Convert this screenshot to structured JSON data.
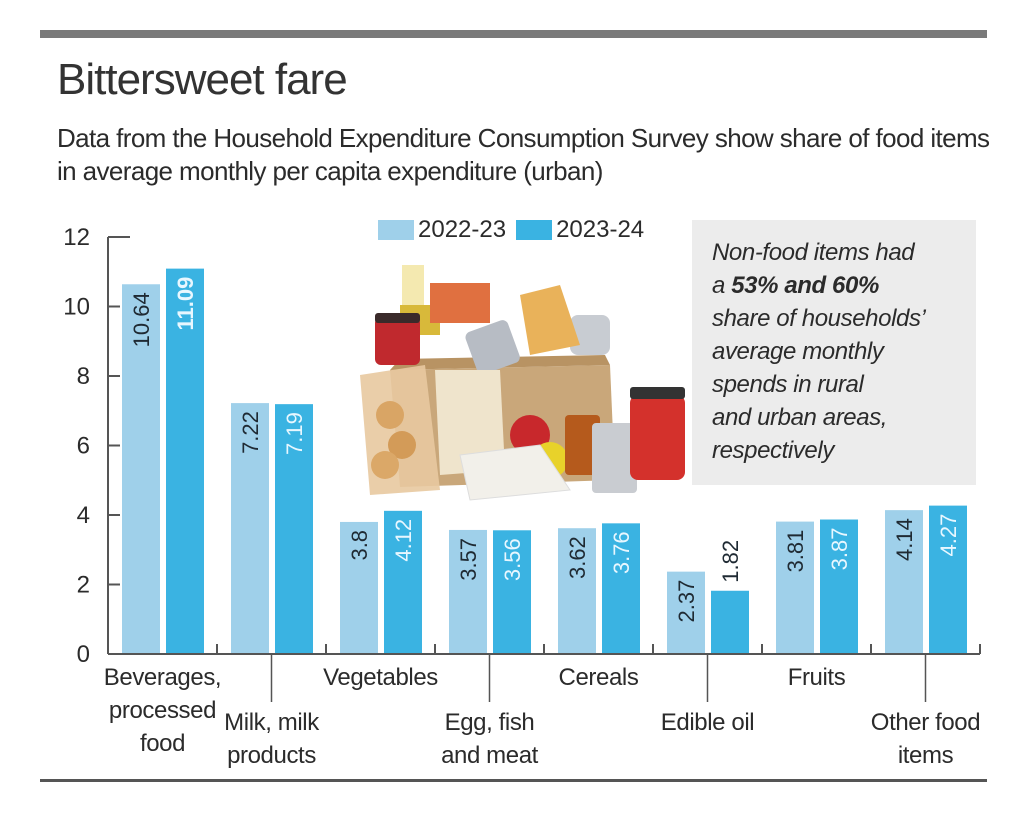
{
  "header": {
    "title": "Bittersweet fare",
    "subtitle": "Data from the Household Expenditure Consumption Survey show share of food items in average monthly per capita expenditure (urban)"
  },
  "note": {
    "line1": "Non-food items had",
    "line2_prefix": "a ",
    "line2_bold": "53% and 60%",
    "line3": "share of households’",
    "line4": "average monthly",
    "line5": "spends in rural",
    "line6": "and urban areas,",
    "line7": "respectively"
  },
  "image": {
    "description": "Grocery box with jars, cans, biscuits, apples and packaged food"
  },
  "colors": {
    "series_2022": "#9fd0ea",
    "series_2023": "#3ab3e2",
    "axis": "#555555",
    "note_bg": "#ececec"
  },
  "chart_data": {
    "type": "bar",
    "title": "Bittersweet fare",
    "xlabel": "",
    "ylabel": "",
    "ylim": [
      0,
      12
    ],
    "yticks": [
      "0",
      "2",
      "4",
      "6",
      "8",
      "10",
      "12"
    ],
    "grid": false,
    "legend_position": "top-center",
    "categories": [
      "Beverages, processed food",
      "Milk, milk products",
      "Vegetables",
      "Egg, fish and meat",
      "Cereals",
      "Edible oil",
      "Fruits",
      "Other food items"
    ],
    "category_label_lines": [
      [
        "Beverages,",
        "processed",
        "food"
      ],
      [
        "Milk, milk",
        "products"
      ],
      [
        "Vegetables"
      ],
      [
        "Egg, fish",
        "and meat"
      ],
      [
        "Cereals"
      ],
      [
        "Edible oil"
      ],
      [
        "Fruits"
      ],
      [
        "Other food",
        "items"
      ]
    ],
    "series": [
      {
        "name": "2022-23",
        "values": [
          10.64,
          7.22,
          3.8,
          3.57,
          3.62,
          2.37,
          3.81,
          4.14
        ],
        "labels": [
          "10.64",
          "7.22",
          "3.8",
          "3.57",
          "3.62",
          "2.37",
          "3.81",
          "4.14"
        ]
      },
      {
        "name": "2023-24",
        "values": [
          11.09,
          7.19,
          4.12,
          3.56,
          3.76,
          1.82,
          3.87,
          4.27
        ],
        "labels": [
          "11.09",
          "7.19",
          "4.12",
          "3.56",
          "3.76",
          "1.82",
          "3.87",
          "4.27"
        ]
      }
    ]
  }
}
